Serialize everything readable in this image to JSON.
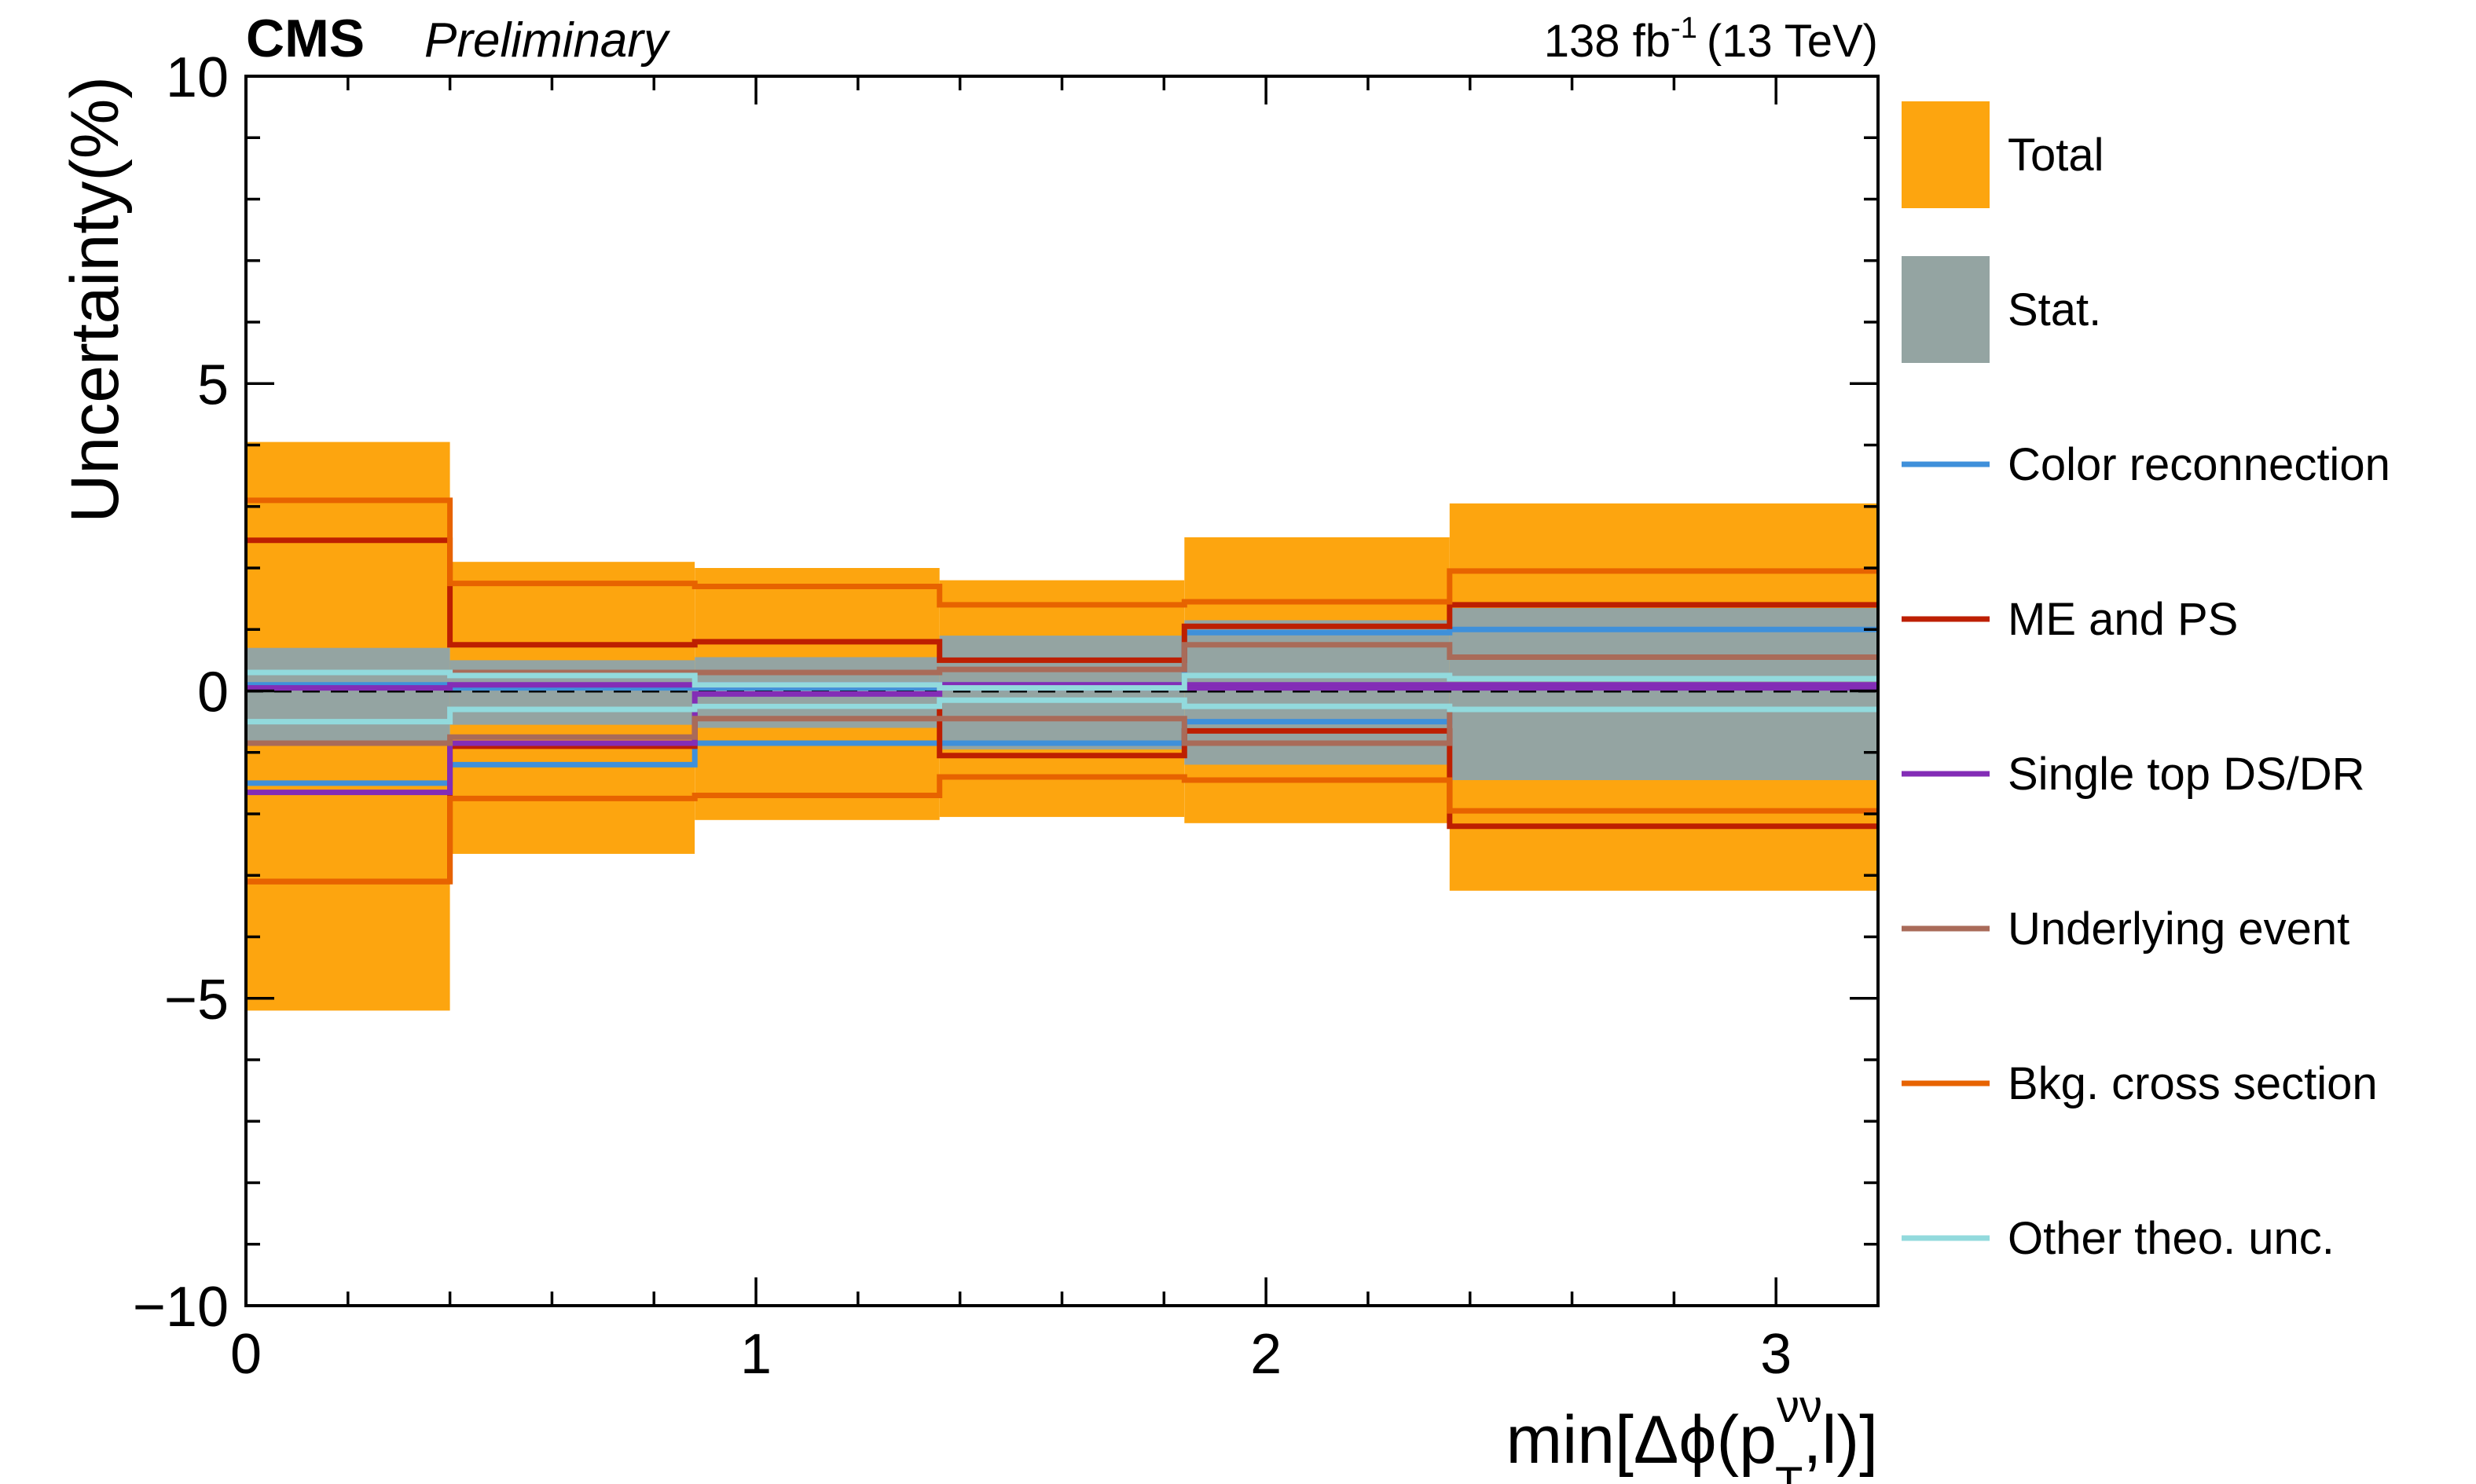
{
  "header": {
    "experiment": "CMS",
    "status": "Preliminary",
    "lumi_value": "138 fb",
    "lumi_exp": "-1",
    "energy": "(13 TeV)"
  },
  "axes": {
    "ylabel": "Uncertainty(%)",
    "xlabel_main": "min[Δϕ(p",
    "xlabel_sup": "νν",
    "xlabel_sub": "T",
    "xlabel_tail": ",l)]"
  },
  "chart_data": {
    "type": "step",
    "title": "",
    "xlabel": "min[Δϕ(p_T^νν,l)]",
    "ylabel": "Uncertainty(%)",
    "xlim": [
      0,
      3.2
    ],
    "ylim": [
      -10,
      10
    ],
    "x_ticks": [
      0,
      1,
      2,
      3
    ],
    "y_ticks": [
      -10,
      -5,
      0,
      5,
      10
    ],
    "bin_edges": [
      0,
      0.4,
      0.88,
      1.36,
      1.84,
      2.36,
      3.2
    ],
    "reference_line": {
      "y": 0,
      "style": "dashed",
      "color": "#000000"
    },
    "bands": [
      {
        "name": "Total",
        "color": "#FDA50F",
        "up": [
          4.05,
          2.1,
          2.0,
          1.8,
          2.5,
          3.05
        ],
        "down": [
          -5.2,
          -2.65,
          -2.1,
          -2.05,
          -2.15,
          -3.25
        ]
      },
      {
        "name": "Stat.",
        "color": "#94A4A2",
        "up": [
          0.7,
          0.5,
          0.55,
          0.9,
          1.15,
          1.35
        ],
        "down": [
          -0.85,
          -0.55,
          -0.6,
          -0.95,
          -1.2,
          -1.45
        ]
      }
    ],
    "series": [
      {
        "name": "Color reconnection",
        "color": "#3F90DA",
        "up": [
          0.1,
          0.05,
          0.05,
          0.1,
          0.95,
          1.0
        ],
        "down": [
          -1.5,
          -1.2,
          -0.85,
          -0.85,
          -0.5,
          -0.3
        ]
      },
      {
        "name": "ME and PS",
        "color": "#BD1F01",
        "up": [
          2.45,
          0.75,
          0.8,
          0.5,
          1.05,
          1.4
        ],
        "down": [
          -3.1,
          -0.9,
          -0.25,
          -1.05,
          -0.65,
          -2.2
        ]
      },
      {
        "name": "Single top DS/DR",
        "color": "#832DB6",
        "up": [
          0.05,
          0.1,
          0.1,
          0.1,
          0.1,
          0.1
        ],
        "down": [
          -1.65,
          -0.85,
          -0.05,
          0.05,
          0.05,
          0.05
        ]
      },
      {
        "name": "Underlying event",
        "color": "#A96B59",
        "up": [
          0.3,
          0.3,
          0.3,
          0.35,
          0.75,
          0.55
        ],
        "down": [
          -0.85,
          -0.75,
          -0.45,
          -0.45,
          -0.85,
          -0.3
        ]
      },
      {
        "name": "Bkg. cross section",
        "color": "#E76300",
        "up": [
          3.1,
          1.75,
          1.7,
          1.4,
          1.45,
          1.95
        ],
        "down": [
          -3.1,
          -1.75,
          -1.7,
          -1.4,
          -1.45,
          -1.95
        ]
      },
      {
        "name": "Other theo. unc.",
        "color": "#92DADD",
        "up": [
          0.3,
          0.25,
          0.1,
          0.05,
          0.25,
          0.2
        ],
        "down": [
          -0.5,
          -0.3,
          -0.25,
          -0.15,
          -0.25,
          -0.3
        ]
      }
    ],
    "legend": {
      "position": "right-outside",
      "entries": [
        "Total",
        "Stat.",
        "Color reconnection",
        "ME and PS",
        "Single top DS/DR",
        "Underlying event",
        "Bkg. cross section",
        "Other theo. unc."
      ]
    },
    "grid": false
  }
}
